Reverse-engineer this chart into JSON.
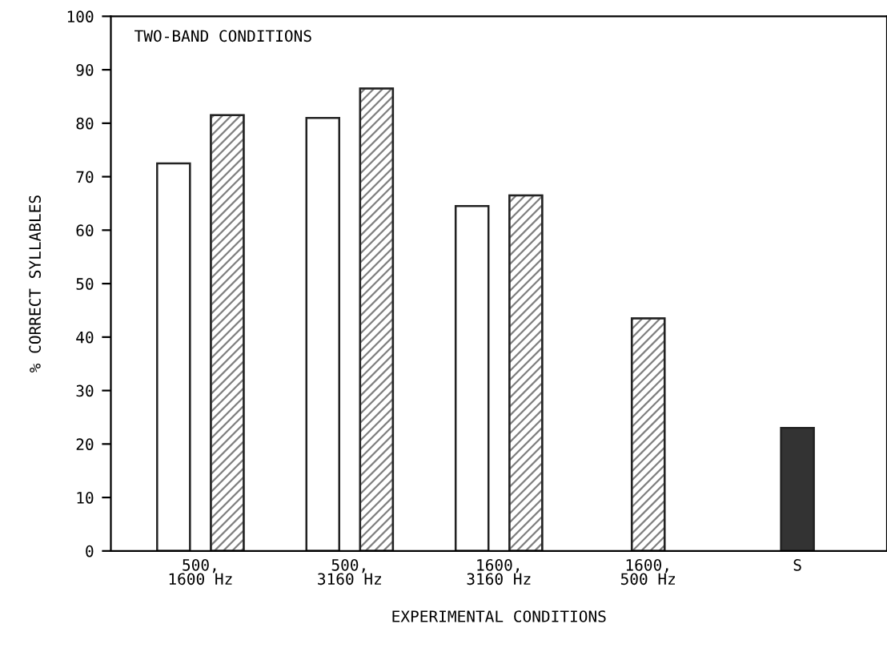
{
  "chart_data": {
    "type": "bar",
    "title": "TWO-BAND CONDITIONS",
    "xlabel": "EXPERIMENTAL CONDITIONS",
    "ylabel": "% CORRECT SYLLABLES",
    "categories": [
      "500,\n1600 Hz",
      "500,\n3160 Hz",
      "1600,\n3160 Hz",
      "1600,\n500 Hz",
      "S"
    ],
    "series": [
      {
        "color": "#ffffff",
        "values": [
          72.5,
          81,
          64.5,
          null,
          null
        ]
      },
      {
        "color": "#7f7f7f",
        "values": [
          81.5,
          86.5,
          66.5,
          43.5,
          null
        ]
      },
      {
        "color": "#333333",
        "values": [
          null,
          null,
          null,
          null,
          23
        ]
      }
    ],
    "ylim": [
      0,
      100
    ],
    "yticks": [
      0,
      10,
      20,
      30,
      40,
      50,
      60,
      70,
      80,
      90,
      100
    ],
    "grid": false,
    "legend": false
  }
}
